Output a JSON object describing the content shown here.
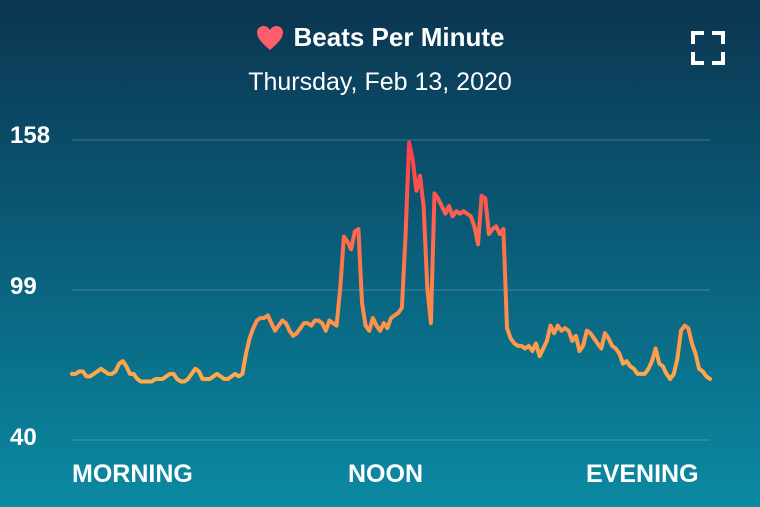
{
  "header": {
    "title": "Beats Per Minute",
    "date": "Thursday, Feb 13, 2020"
  },
  "icons": {
    "heart": "heart-icon",
    "expand": "expand-fullscreen-icon"
  },
  "colors": {
    "line_low": "#ffb84a",
    "line_high": "#ff3d4d",
    "background_top": "#0b3550",
    "background_bottom": "#0b8aa2"
  },
  "chart_data": {
    "type": "line",
    "title": "Beats Per Minute",
    "subtitle": "Thursday, Feb 13, 2020",
    "xlabel": "",
    "ylabel": "",
    "y_ticks": [
      "158",
      "99",
      "40"
    ],
    "ylim": [
      40,
      158
    ],
    "x_tick_labels": [
      "MORNING",
      "NOON",
      "EVENING"
    ],
    "grid": true,
    "series": [
      {
        "values": [
          66,
          66,
          67,
          67,
          65,
          65,
          66,
          67,
          68,
          67,
          66,
          66,
          67,
          70,
          71,
          69,
          66,
          66,
          64,
          63,
          63,
          63,
          63,
          64,
          64,
          64,
          65,
          66,
          66,
          64,
          63,
          63,
          64,
          66,
          68,
          67,
          64,
          64,
          64,
          65,
          66,
          65,
          64,
          64,
          65,
          66,
          65,
          66,
          74,
          80,
          84,
          87,
          88,
          88,
          89,
          86,
          83,
          85,
          87,
          86,
          83,
          81,
          82,
          84,
          86,
          86,
          85,
          87,
          87,
          86,
          83,
          87,
          86,
          85,
          100,
          120,
          118,
          115,
          122,
          123,
          94,
          85,
          83,
          88,
          85,
          83,
          86,
          84,
          88,
          89,
          90,
          92,
          120,
          157,
          150,
          138,
          144,
          132,
          100,
          86,
          137,
          135,
          132,
          129,
          132,
          128,
          130,
          129,
          130,
          129,
          128,
          124,
          117,
          136,
          135,
          121,
          123,
          124,
          121,
          123,
          84,
          80,
          78,
          77,
          77,
          76,
          77,
          75,
          78,
          73,
          76,
          79,
          85,
          82,
          85,
          83,
          84,
          83,
          79,
          81,
          75,
          77,
          83,
          82,
          80,
          78,
          76,
          82,
          80,
          77,
          76,
          74,
          70,
          71,
          69,
          68,
          66,
          66,
          66,
          68,
          71,
          76,
          70,
          69,
          66,
          64,
          66,
          72,
          83,
          85,
          84,
          78,
          74,
          68,
          67,
          65,
          64
        ]
      }
    ]
  }
}
